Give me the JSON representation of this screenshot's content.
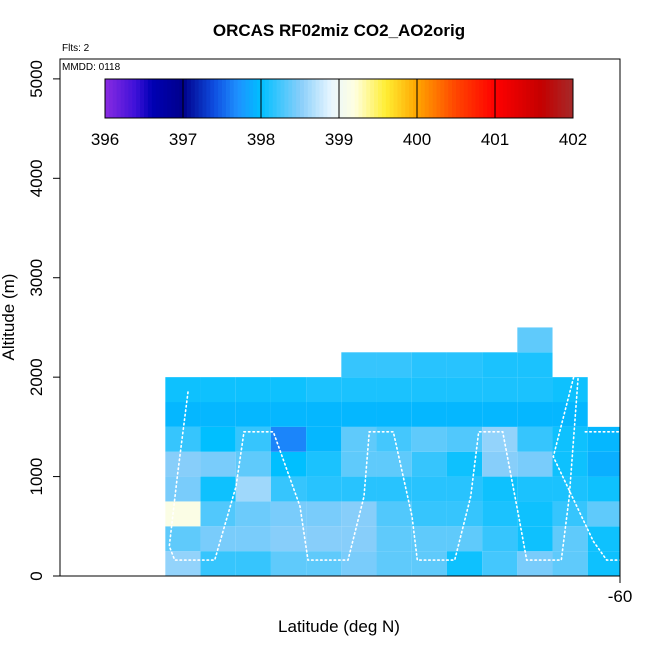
{
  "chart_data": {
    "type": "heatmap",
    "title": "ORCAS RF02miz CO2_AO2orig",
    "xlabel": "Latitude (deg N)",
    "ylabel": "Altitude (m)",
    "annotations": {
      "flights": "Flts: 2",
      "date": "MMDD: 0118"
    },
    "xlim": [
      -62.1,
      -60
    ],
    "ylim": [
      0,
      5200
    ],
    "x_ticks": [
      {
        "value": -60,
        "label": "-60"
      }
    ],
    "y_ticks": [
      {
        "value": 0,
        "label": "0"
      },
      {
        "value": 1000,
        "label": "1000"
      },
      {
        "value": 2000,
        "label": "2000"
      },
      {
        "value": 3000,
        "label": "3000"
      },
      {
        "value": 4000,
        "label": "4000"
      },
      {
        "value": 5000,
        "label": "5000"
      }
    ],
    "colorbar": {
      "min": 396,
      "max": 402,
      "labels": [
        "396",
        "397",
        "398",
        "399",
        "400",
        "401",
        "402"
      ],
      "stops": [
        {
          "v": 396.0,
          "c": "#8a2be2"
        },
        {
          "v": 396.4,
          "c": "#3c10d8"
        },
        {
          "v": 396.6,
          "c": "#0000b4"
        },
        {
          "v": 397.0,
          "c": "#00008b"
        },
        {
          "v": 397.4,
          "c": "#0f4ee0"
        },
        {
          "v": 397.7,
          "c": "#1e90ff"
        },
        {
          "v": 398.0,
          "c": "#00bfff"
        },
        {
          "v": 398.5,
          "c": "#87cefa"
        },
        {
          "v": 398.9,
          "c": "#e8f6ff"
        },
        {
          "v": 399.2,
          "c": "#ffffe0"
        },
        {
          "v": 399.6,
          "c": "#ffee33"
        },
        {
          "v": 400.0,
          "c": "#ffa500"
        },
        {
          "v": 400.5,
          "c": "#ff4500"
        },
        {
          "v": 401.0,
          "c": "#ff0000"
        },
        {
          "v": 401.6,
          "c": "#c40000"
        },
        {
          "v": 402.0,
          "c": "#a52a2a"
        }
      ]
    },
    "grid": {
      "lat_edges": [
        -61.705,
        -61.573,
        -61.441,
        -61.309,
        -61.177,
        -61.045,
        -60.913,
        -60.781,
        -60.649,
        -60.517,
        -60.385,
        -60.253,
        -60.121,
        -59.989
      ],
      "alt_edges": [
        0,
        250,
        500,
        750,
        1000,
        1250,
        1500,
        1750,
        2000,
        2250,
        2500
      ],
      "values": [
        [
          398.55,
          398.2,
          398.2,
          398.35,
          398.35,
          398.45,
          398.35,
          398.35,
          398.05,
          398.25,
          398.45,
          398.35,
          398.05
        ],
        [
          398.35,
          398.45,
          398.45,
          398.5,
          398.5,
          398.5,
          398.35,
          398.35,
          398.35,
          398.2,
          398.05,
          398.35,
          398.05
        ],
        [
          399.15,
          398.3,
          398.4,
          398.45,
          398.45,
          398.5,
          398.3,
          398.2,
          398.2,
          398.1,
          398.05,
          398.2,
          398.35
        ],
        [
          398.45,
          398.05,
          398.6,
          398.2,
          398.15,
          398.15,
          398.15,
          398.15,
          398.15,
          398.05,
          398.1,
          398.1,
          398.05
        ],
        [
          398.5,
          398.45,
          398.35,
          398.0,
          398.1,
          398.35,
          398.35,
          398.2,
          398.05,
          398.5,
          398.45,
          398.05,
          397.9
        ],
        [
          398.2,
          398.0,
          398.2,
          397.65,
          397.95,
          398.35,
          398.25,
          398.35,
          398.3,
          398.55,
          398.2,
          398.05,
          397.95
        ],
        [
          397.95,
          397.95,
          397.95,
          397.95,
          397.95,
          397.95,
          397.95,
          397.95,
          397.95,
          397.95,
          397.95,
          397.95,
          null
        ],
        [
          398.05,
          398.05,
          398.05,
          398.05,
          398.1,
          398.1,
          398.1,
          398.1,
          398.1,
          398.1,
          398.1,
          398.05,
          null
        ],
        [
          null,
          null,
          null,
          null,
          null,
          398.2,
          398.2,
          398.15,
          398.15,
          398.1,
          398.1,
          null,
          null
        ],
        [
          null,
          null,
          null,
          null,
          null,
          null,
          null,
          null,
          null,
          null,
          398.35,
          null,
          null
        ]
      ]
    },
    "flight_track": {
      "color": "#ffffff",
      "points": [
        [
          -61.62,
          1850
        ],
        [
          -61.66,
          1000
        ],
        [
          -61.69,
          300
        ],
        [
          -61.67,
          160
        ],
        [
          -61.52,
          160
        ],
        [
          -61.44,
          900
        ],
        [
          -61.41,
          1450
        ],
        [
          -61.3,
          1450
        ],
        [
          -61.2,
          700
        ],
        [
          -61.17,
          160
        ],
        [
          -61.02,
          160
        ],
        [
          -60.96,
          800
        ],
        [
          -60.94,
          1450
        ],
        [
          -60.85,
          1450
        ],
        [
          -60.78,
          600
        ],
        [
          -60.76,
          160
        ],
        [
          -60.62,
          160
        ],
        [
          -60.56,
          800
        ],
        [
          -60.53,
          1450
        ],
        [
          -60.44,
          1450
        ],
        [
          -60.38,
          600
        ],
        [
          -60.35,
          160
        ],
        [
          -60.22,
          160
        ],
        [
          -60.19,
          800
        ],
        [
          -60.15,
          2250
        ],
        [
          -60.25,
          1200
        ],
        [
          -60.1,
          350
        ],
        [
          -60.05,
          160
        ],
        [
          -59.99,
          160
        ]
      ],
      "points2": [
        [
          -60.13,
          1450
        ],
        [
          -60.02,
          1450
        ],
        [
          -59.99,
          1450
        ]
      ]
    }
  }
}
